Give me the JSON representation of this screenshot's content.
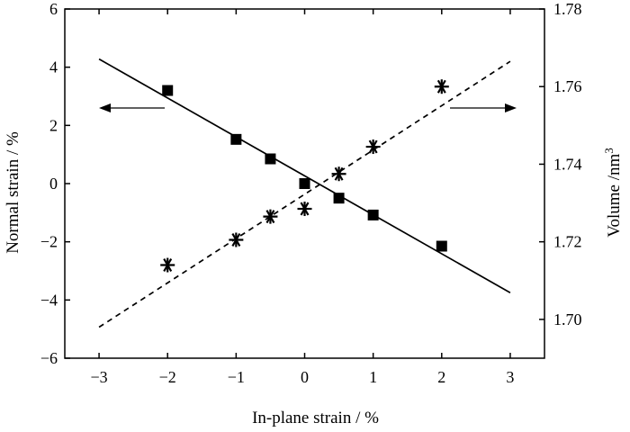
{
  "chart_data": {
    "type": "scatter",
    "title": "",
    "xlabel": "In-plane strain / %",
    "ylabel_left": "Normal strain / %",
    "ylabel_right_base": "Volume /nm",
    "ylabel_right_sup": "3",
    "xlim": [
      -3.5,
      3.5
    ],
    "ylim_left": [
      -6,
      6
    ],
    "ylim_right": [
      1.69,
      1.78
    ],
    "x_ticks": [
      -3,
      -2,
      -1,
      0,
      1,
      2,
      3
    ],
    "x_tick_labels": [
      "−3",
      "−2",
      "−1",
      "0",
      "1",
      "2",
      "3"
    ],
    "y_left_ticks": [
      -6,
      -4,
      -2,
      0,
      2,
      4,
      6
    ],
    "y_left_tick_labels": [
      "−6",
      "−4",
      "−2",
      "0",
      "2",
      "4",
      "6"
    ],
    "y_right_ticks": [
      1.7,
      1.72,
      1.74,
      1.76,
      1.78
    ],
    "y_right_tick_labels": [
      "1.70",
      "1.72",
      "1.74",
      "1.76",
      "1.78"
    ],
    "grid": false,
    "series": [
      {
        "axis": "left",
        "marker": "square",
        "x": [
          -2,
          -1,
          -0.5,
          0,
          0.5,
          1,
          2
        ],
        "y": [
          3.2,
          1.52,
          0.85,
          0.0,
          -0.5,
          -1.08,
          -2.15
        ]
      },
      {
        "axis": "right",
        "marker": "asterisk",
        "x": [
          -2,
          -1,
          -0.5,
          0,
          0.5,
          1,
          2
        ],
        "y": [
          1.714,
          1.7205,
          1.7265,
          1.7285,
          1.7375,
          1.7445,
          1.76
        ]
      }
    ],
    "fit_lines": [
      {
        "axis": "left",
        "style": "solid",
        "x": [
          -3,
          3
        ],
        "y": [
          4.28,
          -3.75
        ]
      },
      {
        "axis": "right",
        "style": "dashed",
        "x": [
          -3,
          3
        ],
        "y": [
          1.698,
          1.7665
        ]
      }
    ],
    "annotations": [
      {
        "type": "arrow",
        "direction": "left",
        "meaning": "square series uses left axis"
      },
      {
        "type": "arrow",
        "direction": "right",
        "meaning": "asterisk series uses right axis"
      }
    ]
  }
}
